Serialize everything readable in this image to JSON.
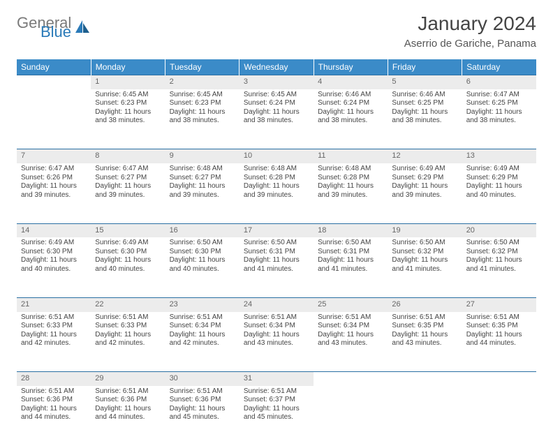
{
  "logo": {
    "general": "General",
    "blue": "Blue"
  },
  "title": "January 2024",
  "location": "Aserrio de Gariche, Panama",
  "header_bg": "#3b8bc8",
  "day_headers": [
    "Sunday",
    "Monday",
    "Tuesday",
    "Wednesday",
    "Thursday",
    "Friday",
    "Saturday"
  ],
  "weeks": [
    [
      null,
      {
        "n": "1",
        "sr": "Sunrise: 6:45 AM",
        "ss": "Sunset: 6:23 PM",
        "dl": "Daylight: 11 hours and 38 minutes."
      },
      {
        "n": "2",
        "sr": "Sunrise: 6:45 AM",
        "ss": "Sunset: 6:23 PM",
        "dl": "Daylight: 11 hours and 38 minutes."
      },
      {
        "n": "3",
        "sr": "Sunrise: 6:45 AM",
        "ss": "Sunset: 6:24 PM",
        "dl": "Daylight: 11 hours and 38 minutes."
      },
      {
        "n": "4",
        "sr": "Sunrise: 6:46 AM",
        "ss": "Sunset: 6:24 PM",
        "dl": "Daylight: 11 hours and 38 minutes."
      },
      {
        "n": "5",
        "sr": "Sunrise: 6:46 AM",
        "ss": "Sunset: 6:25 PM",
        "dl": "Daylight: 11 hours and 38 minutes."
      },
      {
        "n": "6",
        "sr": "Sunrise: 6:47 AM",
        "ss": "Sunset: 6:25 PM",
        "dl": "Daylight: 11 hours and 38 minutes."
      }
    ],
    [
      {
        "n": "7",
        "sr": "Sunrise: 6:47 AM",
        "ss": "Sunset: 6:26 PM",
        "dl": "Daylight: 11 hours and 39 minutes."
      },
      {
        "n": "8",
        "sr": "Sunrise: 6:47 AM",
        "ss": "Sunset: 6:27 PM",
        "dl": "Daylight: 11 hours and 39 minutes."
      },
      {
        "n": "9",
        "sr": "Sunrise: 6:48 AM",
        "ss": "Sunset: 6:27 PM",
        "dl": "Daylight: 11 hours and 39 minutes."
      },
      {
        "n": "10",
        "sr": "Sunrise: 6:48 AM",
        "ss": "Sunset: 6:28 PM",
        "dl": "Daylight: 11 hours and 39 minutes."
      },
      {
        "n": "11",
        "sr": "Sunrise: 6:48 AM",
        "ss": "Sunset: 6:28 PM",
        "dl": "Daylight: 11 hours and 39 minutes."
      },
      {
        "n": "12",
        "sr": "Sunrise: 6:49 AM",
        "ss": "Sunset: 6:29 PM",
        "dl": "Daylight: 11 hours and 39 minutes."
      },
      {
        "n": "13",
        "sr": "Sunrise: 6:49 AM",
        "ss": "Sunset: 6:29 PM",
        "dl": "Daylight: 11 hours and 40 minutes."
      }
    ],
    [
      {
        "n": "14",
        "sr": "Sunrise: 6:49 AM",
        "ss": "Sunset: 6:30 PM",
        "dl": "Daylight: 11 hours and 40 minutes."
      },
      {
        "n": "15",
        "sr": "Sunrise: 6:49 AM",
        "ss": "Sunset: 6:30 PM",
        "dl": "Daylight: 11 hours and 40 minutes."
      },
      {
        "n": "16",
        "sr": "Sunrise: 6:50 AM",
        "ss": "Sunset: 6:30 PM",
        "dl": "Daylight: 11 hours and 40 minutes."
      },
      {
        "n": "17",
        "sr": "Sunrise: 6:50 AM",
        "ss": "Sunset: 6:31 PM",
        "dl": "Daylight: 11 hours and 41 minutes."
      },
      {
        "n": "18",
        "sr": "Sunrise: 6:50 AM",
        "ss": "Sunset: 6:31 PM",
        "dl": "Daylight: 11 hours and 41 minutes."
      },
      {
        "n": "19",
        "sr": "Sunrise: 6:50 AM",
        "ss": "Sunset: 6:32 PM",
        "dl": "Daylight: 11 hours and 41 minutes."
      },
      {
        "n": "20",
        "sr": "Sunrise: 6:50 AM",
        "ss": "Sunset: 6:32 PM",
        "dl": "Daylight: 11 hours and 41 minutes."
      }
    ],
    [
      {
        "n": "21",
        "sr": "Sunrise: 6:51 AM",
        "ss": "Sunset: 6:33 PM",
        "dl": "Daylight: 11 hours and 42 minutes."
      },
      {
        "n": "22",
        "sr": "Sunrise: 6:51 AM",
        "ss": "Sunset: 6:33 PM",
        "dl": "Daylight: 11 hours and 42 minutes."
      },
      {
        "n": "23",
        "sr": "Sunrise: 6:51 AM",
        "ss": "Sunset: 6:34 PM",
        "dl": "Daylight: 11 hours and 42 minutes."
      },
      {
        "n": "24",
        "sr": "Sunrise: 6:51 AM",
        "ss": "Sunset: 6:34 PM",
        "dl": "Daylight: 11 hours and 43 minutes."
      },
      {
        "n": "25",
        "sr": "Sunrise: 6:51 AM",
        "ss": "Sunset: 6:34 PM",
        "dl": "Daylight: 11 hours and 43 minutes."
      },
      {
        "n": "26",
        "sr": "Sunrise: 6:51 AM",
        "ss": "Sunset: 6:35 PM",
        "dl": "Daylight: 11 hours and 43 minutes."
      },
      {
        "n": "27",
        "sr": "Sunrise: 6:51 AM",
        "ss": "Sunset: 6:35 PM",
        "dl": "Daylight: 11 hours and 44 minutes."
      }
    ],
    [
      {
        "n": "28",
        "sr": "Sunrise: 6:51 AM",
        "ss": "Sunset: 6:36 PM",
        "dl": "Daylight: 11 hours and 44 minutes."
      },
      {
        "n": "29",
        "sr": "Sunrise: 6:51 AM",
        "ss": "Sunset: 6:36 PM",
        "dl": "Daylight: 11 hours and 44 minutes."
      },
      {
        "n": "30",
        "sr": "Sunrise: 6:51 AM",
        "ss": "Sunset: 6:36 PM",
        "dl": "Daylight: 11 hours and 45 minutes."
      },
      {
        "n": "31",
        "sr": "Sunrise: 6:51 AM",
        "ss": "Sunset: 6:37 PM",
        "dl": "Daylight: 11 hours and 45 minutes."
      },
      null,
      null,
      null
    ]
  ]
}
